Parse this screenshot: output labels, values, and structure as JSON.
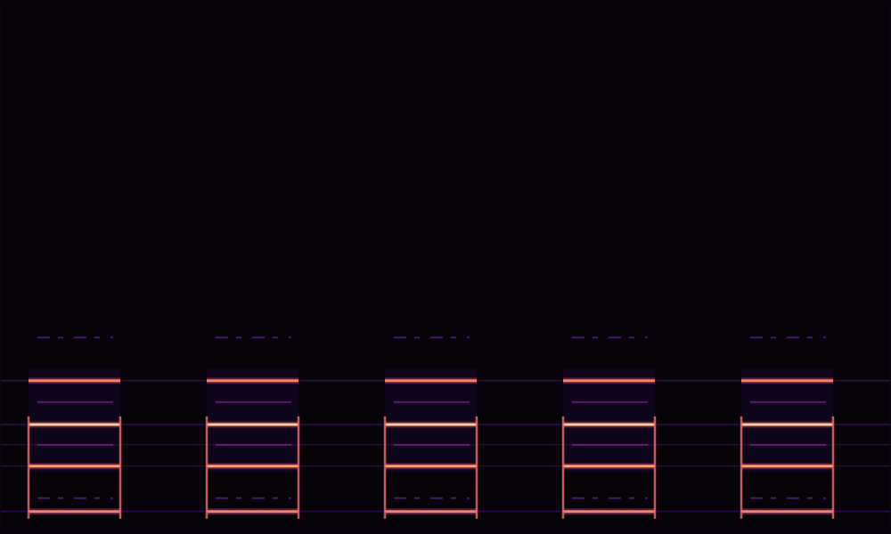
{
  "chart_data": {
    "type": "spectrogram",
    "xlim": [
      0,
      100
    ],
    "ylim": [
      0,
      100
    ],
    "tick_labels": false,
    "grid": false,
    "segments": [
      {
        "start": 3.2,
        "end": 13.5
      },
      {
        "start": 23.2,
        "end": 33.5
      },
      {
        "start": 43.2,
        "end": 53.5
      },
      {
        "start": 63.2,
        "end": 73.5
      },
      {
        "start": 83.2,
        "end": 93.5
      }
    ],
    "bands": [
      {
        "freq": 36.8,
        "level": 0.3,
        "floor": 0
      },
      {
        "freq": 28.7,
        "level": 0.85,
        "floor": 0.25
      },
      {
        "freq": 24.7,
        "level": 0.35,
        "floor": 0
      },
      {
        "freq": 20.5,
        "level": 0.95,
        "floor": 0.25
      },
      {
        "freq": 16.7,
        "level": 0.4,
        "floor": 0.2
      },
      {
        "freq": 12.7,
        "level": 0.9,
        "floor": 0.2
      },
      {
        "freq": 6.7,
        "level": 0.3,
        "floor": 0
      },
      {
        "freq": 4.2,
        "level": 0.85,
        "floor": 0.2
      }
    ]
  }
}
